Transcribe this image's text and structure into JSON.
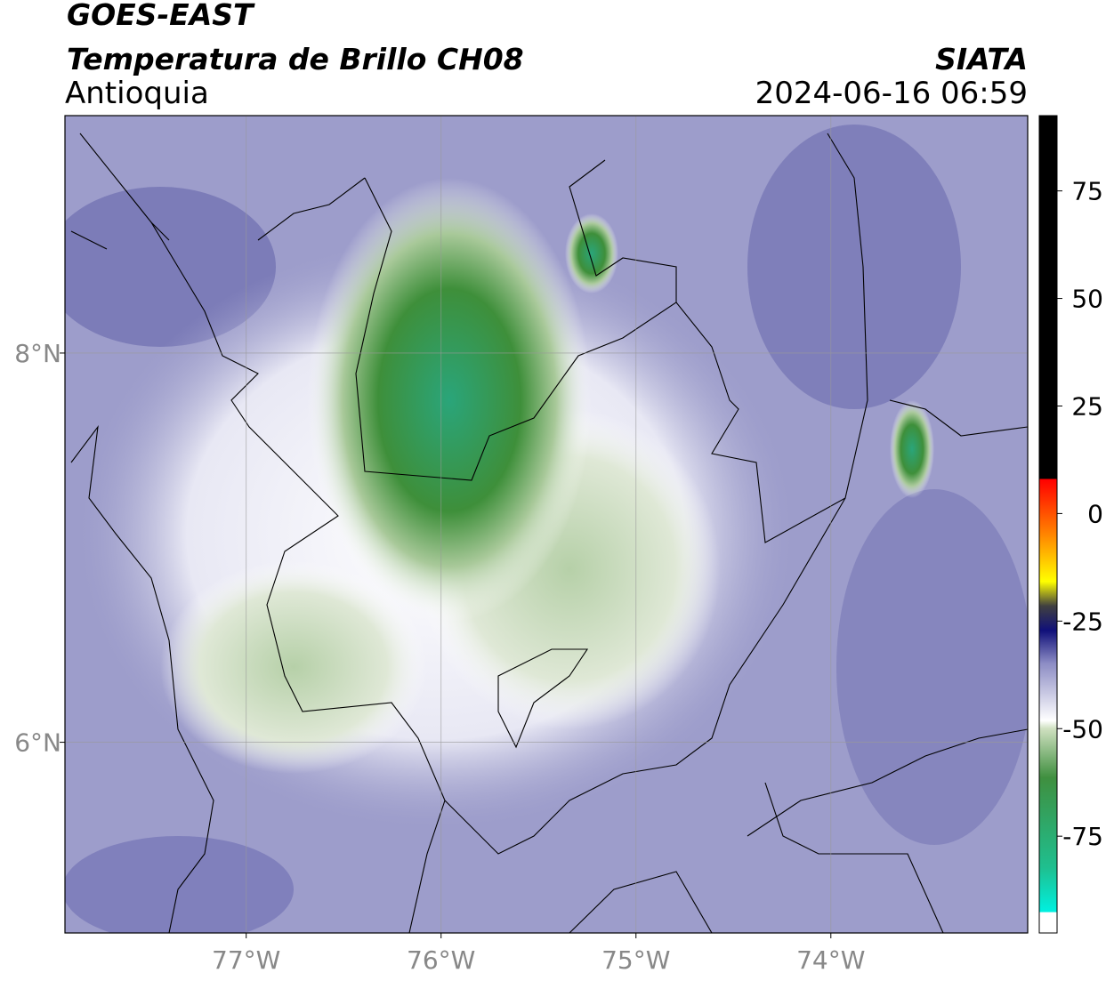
{
  "header": {
    "title": "GOES-EAST",
    "subtitle": "Temperatura de Brillo CH08",
    "region": "Antioquia",
    "source": "SIATA",
    "datetime": "2024-06-16 06:59"
  },
  "map": {
    "xlim": [
      -77.93,
      -72.99
    ],
    "ylim": [
      5.02,
      9.22
    ],
    "xticks": [
      {
        "value": -77,
        "label": "77°W"
      },
      {
        "value": -76,
        "label": "76°W"
      },
      {
        "value": -75,
        "label": "75°W"
      },
      {
        "value": -74,
        "label": "74°W"
      }
    ],
    "yticks": [
      {
        "value": 8,
        "label": "8°N"
      },
      {
        "value": 6,
        "label": "6°N"
      }
    ]
  },
  "colorbar": {
    "lim": [
      -97.5,
      92.5
    ],
    "ticks": [
      75,
      50,
      25,
      0,
      -25,
      -50,
      -75
    ]
  }
}
